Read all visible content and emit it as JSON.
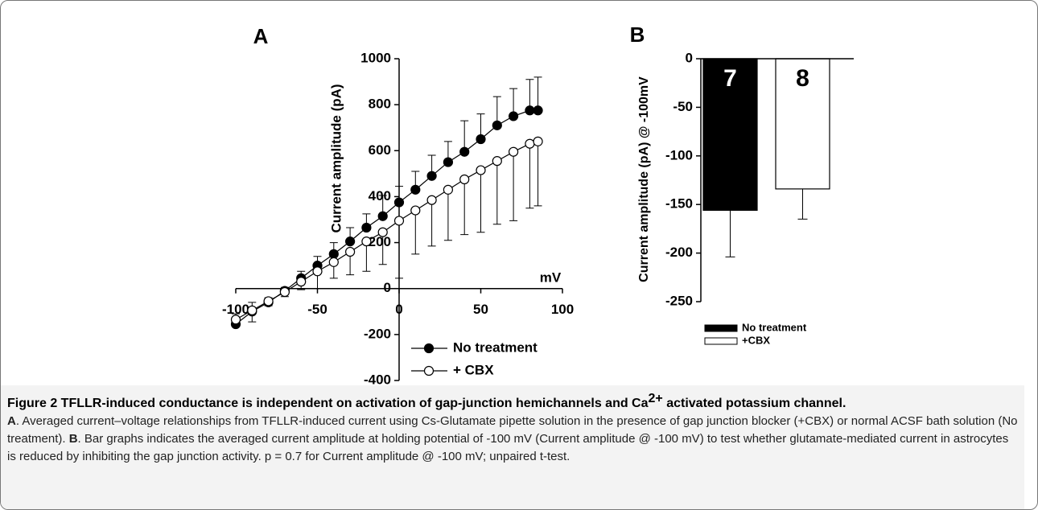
{
  "chart_data": [
    {
      "type": "line",
      "panel": "A",
      "x_label": "mV",
      "y_label": "Current amplitude (pA)",
      "x": [
        -100,
        -90,
        -80,
        -70,
        -60,
        -50,
        -40,
        -30,
        -20,
        -10,
        0,
        10,
        20,
        30,
        40,
        50,
        60,
        70,
        80,
        85
      ],
      "xlim": [
        -100,
        100
      ],
      "xticks": [
        -100,
        -50,
        0,
        50,
        100
      ],
      "ylim": [
        -400,
        1000
      ],
      "yticks": [
        -400,
        -200,
        0,
        200,
        400,
        600,
        800,
        1000
      ],
      "series": [
        {
          "name": "No treatment",
          "color": "#000000",
          "values": [
            -155,
            -100,
            -60,
            -10,
            45,
            100,
            150,
            205,
            265,
            315,
            375,
            430,
            490,
            550,
            595,
            650,
            710,
            750,
            775,
            775
          ],
          "errors": [
            45,
            40,
            20,
            15,
            30,
            40,
            50,
            60,
            60,
            90,
            70,
            80,
            90,
            90,
            135,
            110,
            125,
            120,
            135,
            145
          ],
          "error_direction": "up"
        },
        {
          "name": "+ CBX",
          "color": "#ffffff",
          "values": [
            -135,
            -95,
            -55,
            -15,
            30,
            75,
            115,
            160,
            205,
            245,
            295,
            340,
            385,
            430,
            475,
            515,
            555,
            595,
            630,
            640
          ],
          "errors": [
            30,
            50,
            20,
            20,
            35,
            75,
            70,
            100,
            130,
            140,
            250,
            190,
            200,
            220,
            240,
            270,
            275,
            300,
            280,
            280
          ],
          "error_direction": "down"
        }
      ]
    },
    {
      "type": "bar",
      "panel": "B",
      "y_label": "Current amplitude (pA) @ -100mV",
      "categories": [
        "No treatment",
        "+CBX"
      ],
      "values": [
        -156,
        -134
      ],
      "errors": [
        48,
        31
      ],
      "colors": [
        "#000000",
        "#ffffff"
      ],
      "annotations": [
        "7",
        "8"
      ],
      "ylim": [
        -250,
        0
      ],
      "yticks": [
        0,
        -50,
        -100,
        -150,
        -200,
        -250
      ]
    }
  ],
  "caption": {
    "title_parts": [
      "Figure 2 TFLLR-induced conductance is independent on activation of gap-junction hemichannels and Ca",
      "2+",
      " activated potassium channel."
    ],
    "parts": [
      "A",
      ". Averaged current–voltage relationships from TFLLR-induced current using Cs-Glutamate pipette solution in the presence of gap junction blocker (+CBX) or normal ACSF bath solution (No treatment). ",
      "B",
      ". Bar graphs indicates the averaged current amplitude at holding potential of -100 mV (Current amplitude @ -100 mV) to test whether glutamate-mediated current in astrocytes is reduced by inhibiting the gap junction activity. p = 0.7 for Current amplitude @ -100 mV; unpaired t-test."
    ]
  }
}
